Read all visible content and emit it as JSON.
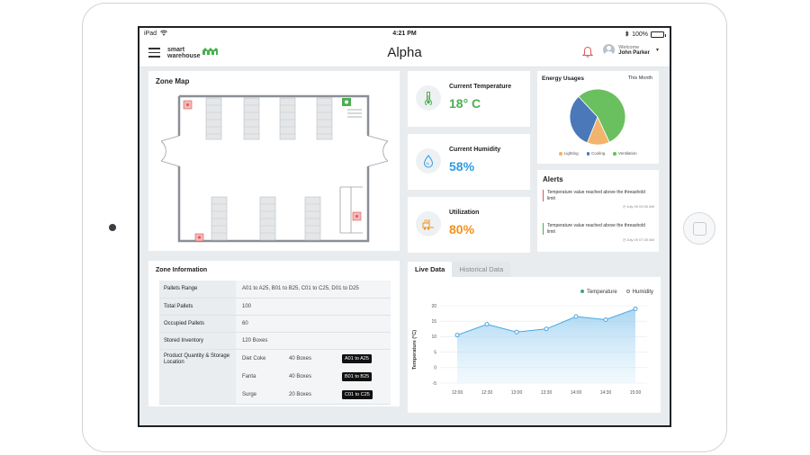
{
  "status_bar": {
    "carrier": "iPad",
    "time": "4:21 PM",
    "battery": "100%",
    "battery_level": 1.0
  },
  "app": {
    "title": "Alpha",
    "logo_line1": "smart",
    "logo_line2": "warehouse"
  },
  "user": {
    "welcome": "Welcome",
    "name": "John Parker"
  },
  "zone_map": {
    "title": "Zone Map"
  },
  "metrics": {
    "temperature": {
      "label": "Current Temperature",
      "value": "18° C",
      "color": "#4caf50"
    },
    "humidity": {
      "label": "Current Humidity",
      "value": "58%",
      "color": "#2f9be3"
    },
    "utilization": {
      "label": "Utilization",
      "value": "80%",
      "color": "#f0931e"
    }
  },
  "energy": {
    "title": "Energy Usages",
    "period": "This Month",
    "slices": [
      {
        "name": "Lighting",
        "value": 13,
        "color": "#f2b36c"
      },
      {
        "name": "Cooling",
        "value": 32,
        "color": "#4a78b8"
      },
      {
        "name": "Ventilation",
        "value": 55,
        "color": "#6abf5e"
      }
    ]
  },
  "alerts": {
    "title": "Alerts",
    "items": [
      {
        "message": "Temperature value reached above the threashold limit",
        "time": "July 09 09:30 AM",
        "color": "#e05757"
      },
      {
        "message": "Temperature value reached above the threashold limit",
        "time": "July 09 07:30 AM",
        "color": "#4caf50"
      }
    ]
  },
  "zone_info": {
    "title": "Zone Information",
    "rows": [
      {
        "label": "Pallets Range",
        "value": "A01 to A25, B01 to B25, C01 to C25, D01 to D25"
      },
      {
        "label": "Total Pallets",
        "value": "100"
      },
      {
        "label": "Occupied Pallets",
        "value": "60"
      },
      {
        "label": "Stored Inventory",
        "value": "120 Boxes"
      }
    ],
    "product_label": "Product Quantity & Storage Location",
    "products": [
      {
        "name": "Diet Coke",
        "boxes": "40 Boxes",
        "location": "A01 to A25"
      },
      {
        "name": "Fanta",
        "boxes": "40 Boxes",
        "location": "B01 to B25"
      },
      {
        "name": "Surge",
        "boxes": "20 Boxes",
        "location": "C01 to C25"
      }
    ]
  },
  "live": {
    "tabs": [
      {
        "label": "Live Data",
        "active": true
      },
      {
        "label": "Historical Data",
        "active": false
      }
    ],
    "legend": [
      {
        "name": "Temperature",
        "color": "#3aa57a"
      },
      {
        "name": "Humidity",
        "color": "#ffffff"
      }
    ]
  },
  "chart_data": {
    "type": "area",
    "x": [
      "12:00",
      "12:30",
      "13:00",
      "13:30",
      "14:00",
      "14:30",
      "15:00"
    ],
    "series": [
      {
        "name": "Temperature",
        "values": [
          10.5,
          14,
          11.5,
          12.5,
          16.5,
          15.5,
          19
        ]
      }
    ],
    "ylabel": "Temperature (°C)",
    "ylim": [
      -5,
      20
    ],
    "yticks": [
      -5,
      0,
      5,
      10,
      15,
      20
    ],
    "grid": true,
    "line_color": "#49a8e0"
  }
}
